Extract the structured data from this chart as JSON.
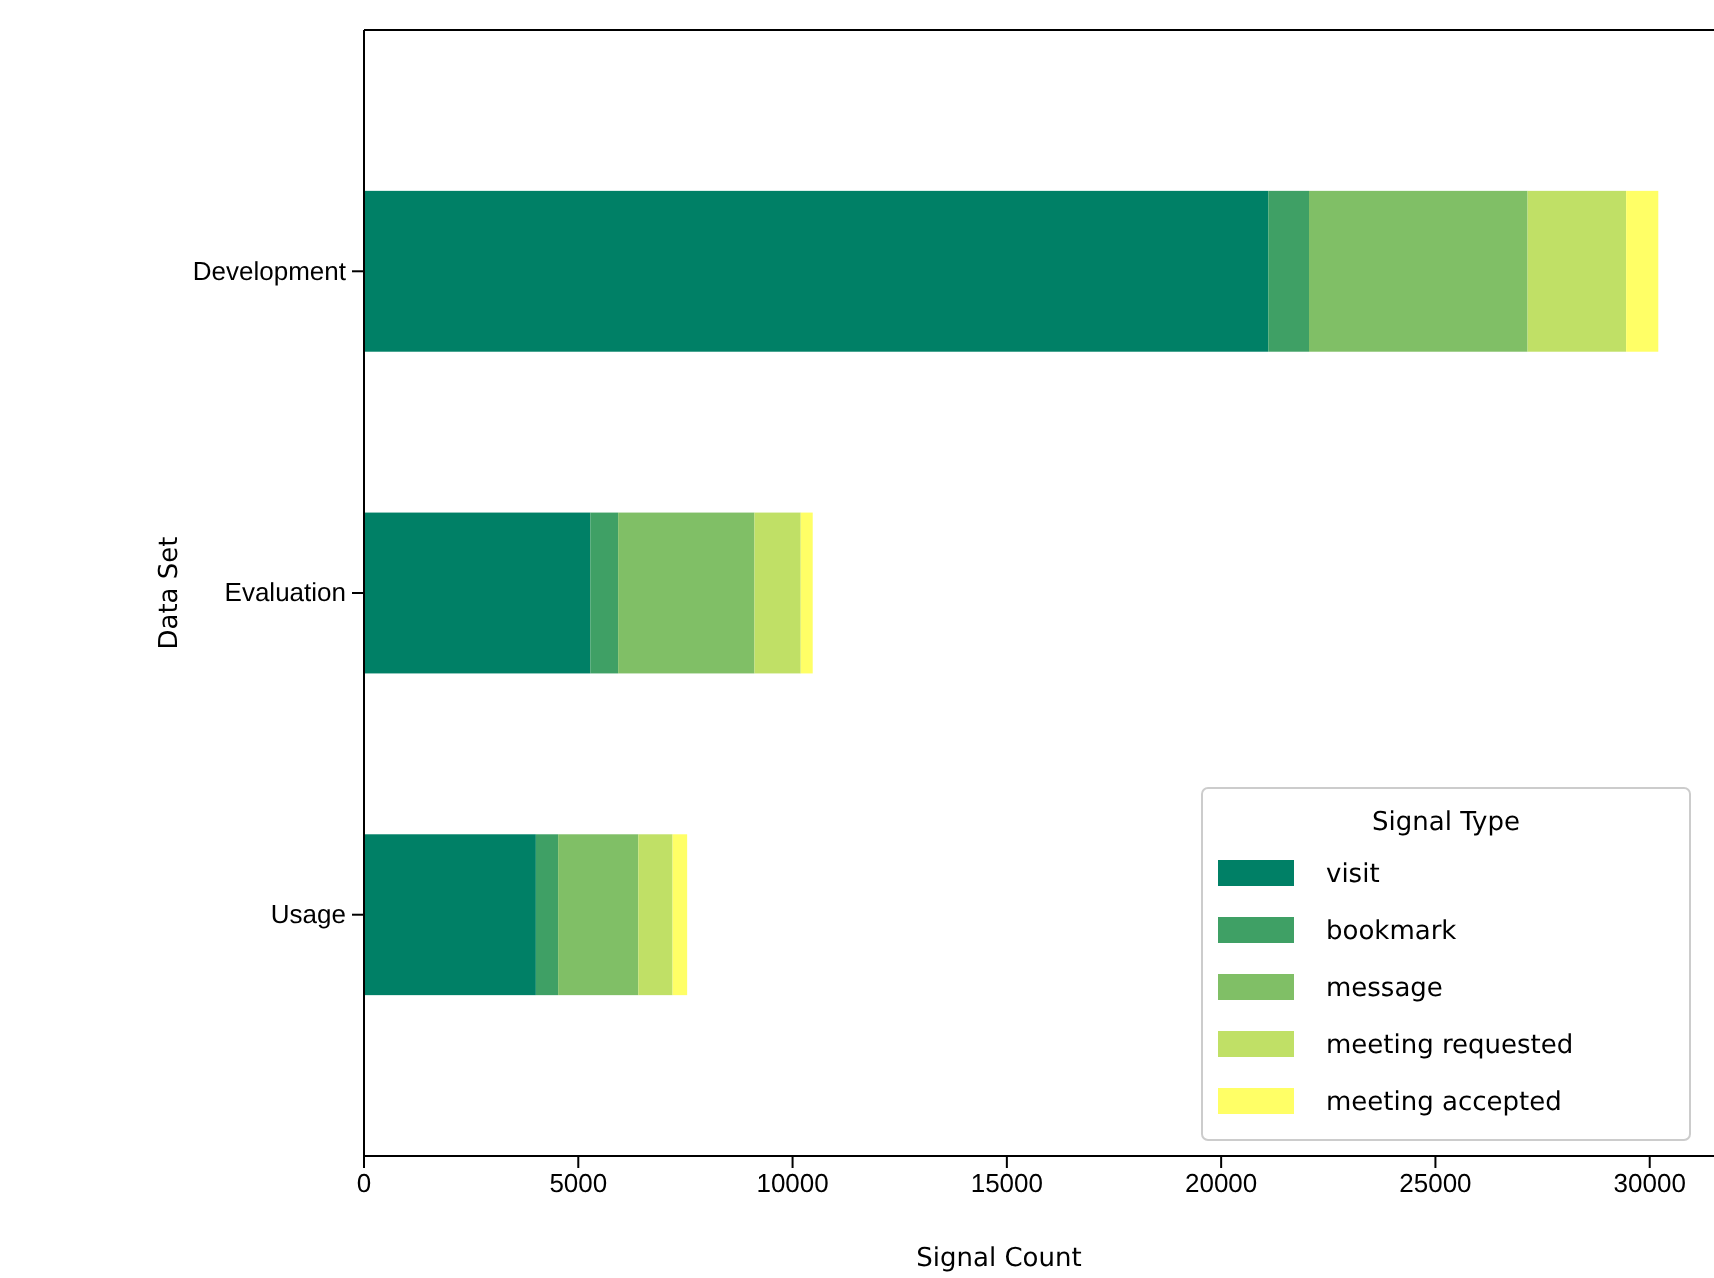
{
  "chart_data": {
    "type": "bar",
    "orientation": "horizontal",
    "stacked": true,
    "xlabel": "Signal Count",
    "ylabel": "Data Set",
    "legend_title": "Signal Type",
    "legend": "bottom right",
    "categories": [
      "Development",
      "Evaluation",
      "Usage"
    ],
    "xlim": [
      0,
      31500
    ],
    "xticks": [
      0,
      5000,
      10000,
      15000,
      20000,
      25000,
      30000
    ],
    "series": [
      {
        "name": "visit",
        "color": "#008066",
        "values": [
          21100,
          5280,
          4010
        ]
      },
      {
        "name": "bookmark",
        "color": "#3fa065",
        "values": [
          950,
          650,
          520
        ]
      },
      {
        "name": "message",
        "color": "#80bf66",
        "values": [
          5100,
          3180,
          1870
        ]
      },
      {
        "name": "meeting requested",
        "color": "#c0e066",
        "values": [
          2300,
          1080,
          800
        ]
      },
      {
        "name": "meeting accepted",
        "color": "#ffff66",
        "values": [
          750,
          280,
          340
        ]
      }
    ]
  }
}
